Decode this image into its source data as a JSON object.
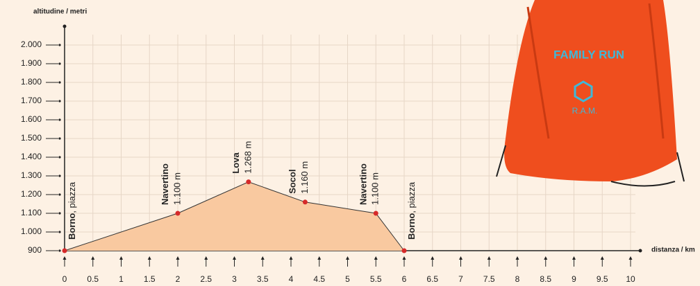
{
  "chart_data": {
    "type": "area",
    "ylabel": "altitudine / metri",
    "xlabel": "distanza / km",
    "x": [
      0,
      2,
      3.25,
      4.25,
      5.5,
      6
    ],
    "values": [
      900,
      1100,
      1268,
      1160,
      1100,
      900
    ],
    "point_names": [
      "Borno",
      "Navertino",
      "Lova",
      "Socol",
      "Navertino",
      "Borno"
    ],
    "point_notes": [
      ", piazza",
      null,
      null,
      null,
      null,
      ", piazza"
    ],
    "value_labels": [
      null,
      "1.100 m",
      "1.268 m",
      "1.160 m",
      "1.100 m",
      null
    ],
    "line_color": "#333333",
    "fill_color": "#f9c9a0",
    "marker_color": "#d62a2a",
    "xlim": [
      0,
      10
    ],
    "ylim": [
      900,
      2100
    ],
    "xticks": [
      0,
      0.5,
      1,
      1.5,
      2,
      2.5,
      3,
      3.5,
      4,
      4.5,
      5,
      5.5,
      6,
      6.5,
      7,
      7.5,
      8,
      8.5,
      9,
      9.5,
      10
    ],
    "yticks": [
      {
        "value": 900,
        "label": "900"
      },
      {
        "value": 1000,
        "label": "1.000"
      },
      {
        "value": 1100,
        "label": "1.100"
      },
      {
        "value": 1200,
        "label": "1.200"
      },
      {
        "value": 1300,
        "label": "1.300"
      },
      {
        "value": 1400,
        "label": "1.400"
      },
      {
        "value": 1500,
        "label": "1.500"
      },
      {
        "value": 1600,
        "label": "1.600"
      },
      {
        "value": 1700,
        "label": "1.700"
      },
      {
        "value": 1800,
        "label": "1.800"
      },
      {
        "value": 1900,
        "label": "1.900"
      },
      {
        "value": 2000,
        "label": "2.000"
      }
    ],
    "grid": true
  },
  "bag": {
    "logo_top": "FAMILY RUN",
    "logo_bottom": "R.A.M."
  }
}
